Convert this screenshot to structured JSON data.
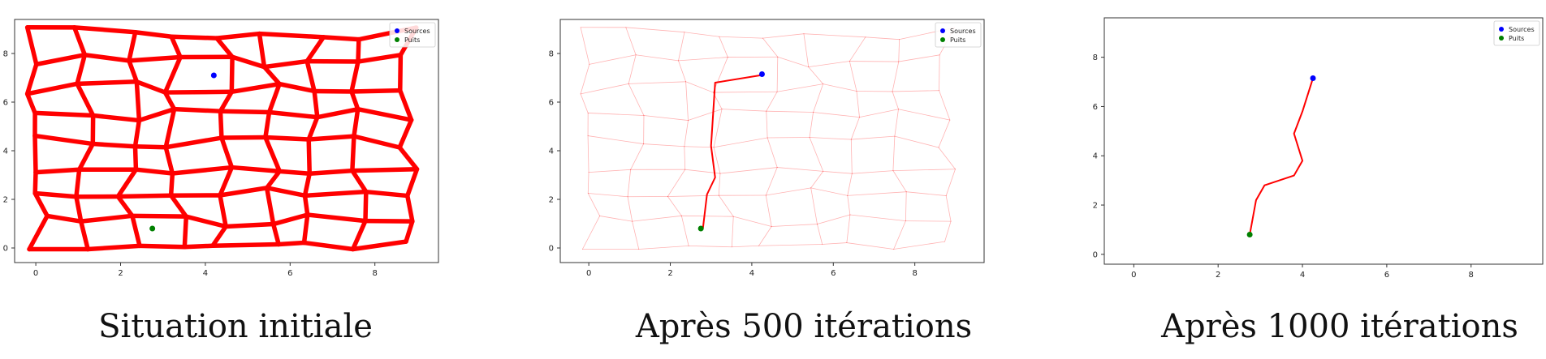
{
  "chart_data": [
    {
      "type": "line",
      "edge_opacity_level": 1.0,
      "network_visible": true,
      "path": [],
      "path_visible": false,
      "xlim": [
        -0.5,
        9.5
      ],
      "ylim": [
        -0.6,
        9.4
      ],
      "xticks": [
        0,
        2,
        4,
        6,
        8
      ],
      "yticks": [
        0,
        2,
        4,
        6,
        8
      ],
      "legend": [
        {
          "label": "Sources",
          "color": "#0000ff"
        },
        {
          "label": "Puits",
          "color": "#008000"
        }
      ],
      "sources": [
        {
          "x": 4.2,
          "y": 7.1
        }
      ],
      "sinks": [
        {
          "x": 2.75,
          "y": 0.8
        }
      ],
      "caption": "Situation initiale",
      "edge_color": "#ff0000"
    },
    {
      "type": "line",
      "edge_opacity_level": 0.3,
      "network_visible": true,
      "path": [
        [
          4.2,
          7.1
        ],
        [
          3.1,
          6.8
        ],
        [
          3.0,
          4.2
        ],
        [
          3.1,
          2.9
        ],
        [
          2.9,
          2.2
        ],
        [
          2.8,
          0.8
        ]
      ],
      "path_visible": true,
      "xlim": [
        -0.7,
        9.7
      ],
      "ylim": [
        -0.6,
        9.4
      ],
      "xticks": [
        0,
        2,
        4,
        6,
        8
      ],
      "yticks": [
        0,
        2,
        4,
        6,
        8
      ],
      "legend": [
        {
          "label": "Sources",
          "color": "#0000ff"
        },
        {
          "label": "Puits",
          "color": "#008000"
        }
      ],
      "sources": [
        {
          "x": 4.25,
          "y": 7.15
        }
      ],
      "sinks": [
        {
          "x": 2.75,
          "y": 0.8
        }
      ],
      "caption": "Après 500 itérations",
      "edge_color": "#ff0000"
    },
    {
      "type": "line",
      "edge_opacity_level": 0.0,
      "network_visible": false,
      "path": [
        [
          4.25,
          7.15
        ],
        [
          4.0,
          5.8
        ],
        [
          3.8,
          4.9
        ],
        [
          4.0,
          3.8
        ],
        [
          3.8,
          3.2
        ],
        [
          3.1,
          2.8
        ],
        [
          2.9,
          2.2
        ],
        [
          2.75,
          0.8
        ]
      ],
      "path_visible": true,
      "xlim": [
        -0.7,
        9.7
      ],
      "ylim": [
        -0.4,
        9.6
      ],
      "xticks": [
        0,
        2,
        4,
        6,
        8
      ],
      "yticks": [
        0,
        2,
        4,
        6,
        8
      ],
      "legend": [
        {
          "label": "Sources",
          "color": "#0000ff"
        },
        {
          "label": "Puits",
          "color": "#008000"
        }
      ],
      "sources": [
        {
          "x": 4.25,
          "y": 7.15
        }
      ],
      "sinks": [
        {
          "x": 2.75,
          "y": 0.8
        }
      ],
      "caption": "Après 1000 itérations",
      "edge_color": "#ff0000"
    }
  ]
}
